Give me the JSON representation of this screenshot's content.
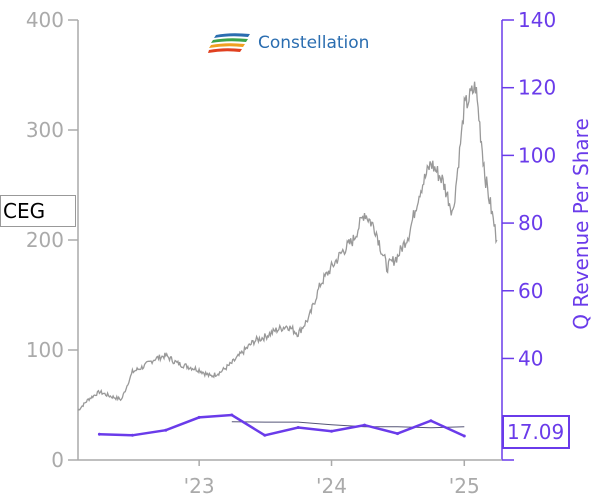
{
  "logo": {
    "text": "Constellation",
    "icon": "constellation-swoosh-icon"
  },
  "ticker": "CEG",
  "last_value_label": "17.09",
  "colors": {
    "price": "#999999",
    "revenue": "#6a3bea",
    "axis_left": "#aaaaaa",
    "axis_right": "#6a3bea"
  },
  "chart_data": {
    "type": "line",
    "title": "",
    "xlabel": "",
    "ylabel_left": "",
    "ylabel_right": "Q Revenue Per Share",
    "x_tick_labels": [
      "'23",
      "'24",
      "'25"
    ],
    "y_left": {
      "lim": [
        0,
        400
      ],
      "ticks": [
        0,
        100,
        200,
        300,
        400
      ]
    },
    "y_right": {
      "lim": [
        10,
        140
      ],
      "ticks": [
        40,
        60,
        80,
        100,
        120,
        140
      ]
    },
    "grid": false,
    "series": [
      {
        "axis": "left",
        "x": [
          "2022-02",
          "2022-03",
          "2022-04",
          "2022-05",
          "2022-06",
          "2022-07",
          "2022-08",
          "2022-09",
          "2022-10",
          "2022-11",
          "2022-12",
          "2023-01",
          "2023-02",
          "2023-03",
          "2023-04",
          "2023-05",
          "2023-06",
          "2023-07",
          "2023-08",
          "2023-09",
          "2023-10",
          "2023-11",
          "2023-12",
          "2024-01",
          "2024-02",
          "2024-03",
          "2024-04",
          "2024-05",
          "2024-06",
          "2024-07",
          "2024-08",
          "2024-09",
          "2024-10",
          "2024-11",
          "2024-12",
          "2025-01",
          "2025-02",
          "2025-03",
          "2025-04"
        ],
        "values": [
          45,
          55,
          62,
          58,
          55,
          80,
          85,
          92,
          95,
          88,
          85,
          82,
          76,
          80,
          88,
          98,
          108,
          112,
          118,
          122,
          115,
          130,
          160,
          175,
          190,
          200,
          225,
          210,
          175,
          185,
          205,
          245,
          270,
          255,
          225,
          320,
          340,
          255,
          200
        ]
      },
      {
        "name": "Q Revenue Per Share",
        "axis": "right",
        "x": [
          "2022-04",
          "2022-07",
          "2022-10",
          "2023-01",
          "2023-04",
          "2023-07",
          "2023-10",
          "2024-01",
          "2024-04",
          "2024-07",
          "2024-10",
          "2025-01"
        ],
        "values": [
          17.6,
          17.3,
          18.8,
          22.6,
          23.3,
          17.3,
          19.6,
          18.5,
          20.3,
          17.8,
          21.6,
          17.09
        ]
      },
      {
        "axis": "right",
        "x": [
          "2023-04",
          "2023-07",
          "2023-10",
          "2024-01",
          "2024-04",
          "2024-07",
          "2024-10",
          "2025-01"
        ],
        "values": [
          21.3,
          21.2,
          21.2,
          20.4,
          19.8,
          19.8,
          19.5,
          19.8
        ]
      }
    ]
  }
}
